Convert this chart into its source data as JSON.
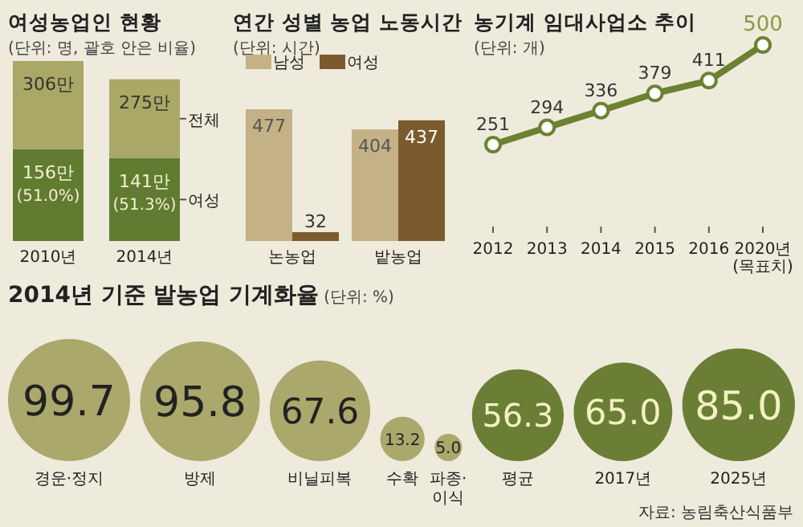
{
  "chart_data": [
    {
      "type": "bar",
      "stacked": true,
      "title": "여성농업인 현황",
      "subtitle": "(단위: 명, 괄호 안은 비율)",
      "categories": [
        "2010년",
        "2014년"
      ],
      "series": [
        {
          "name": "여성",
          "color": "#617b30",
          "values": [
            156,
            141
          ],
          "value_labels": [
            "156만 (51.0%)",
            "141만 (51.3%)"
          ]
        },
        {
          "name": "전체",
          "color": "#a9a866",
          "values": [
            150,
            134
          ]
        }
      ],
      "totals": [
        "306만",
        "275만"
      ]
    },
    {
      "type": "bar",
      "title": "연간 성별 농업 노동시간",
      "subtitle": "(단위: 시간)",
      "categories": [
        "논농업",
        "밭농업"
      ],
      "legend": "top left",
      "data_labels": true,
      "series": [
        {
          "name": "남성",
          "color": "#c4b185",
          "values": [
            477,
            404
          ]
        },
        {
          "name": "여성",
          "color": "#7b5a2d",
          "values": [
            32,
            437
          ]
        }
      ]
    },
    {
      "type": "line",
      "title": "농기계 임대사업소 추이",
      "subtitle": "(단위: 개)",
      "categories": [
        "2012",
        "2013",
        "2014",
        "2015",
        "2016",
        "2020년 (목표치)"
      ],
      "marker": "circle",
      "data_labels": true,
      "series": [
        {
          "color": "#6b8231",
          "values": [
            251,
            294,
            336,
            379,
            411,
            500
          ]
        }
      ]
    },
    {
      "type": "other",
      "title": "2014년 기준 밭농업 기계화율",
      "subtitle": "(단위: %)",
      "categories": [
        "경운·정지",
        "방제",
        "비닐피복",
        "수확",
        "파종·이식",
        "평균",
        "2017년",
        "2025년"
      ],
      "values": [
        99.7,
        95.8,
        67.6,
        13.2,
        5.0,
        56.3,
        65.0,
        85.0
      ],
      "value_labels": [
        "99.7",
        "95.8",
        "67.6",
        "13.2",
        "5.0",
        "56.3",
        "65.0",
        "85.0"
      ],
      "colors": [
        "#aaa86b",
        "#aaa86b",
        "#aaa86b",
        "#aaa86b",
        "#aaa86b",
        "#6a7f35",
        "#6a7f35",
        "#6a7f35"
      ],
      "annotations": [
        "자료: 농림축산식품부"
      ]
    }
  ]
}
